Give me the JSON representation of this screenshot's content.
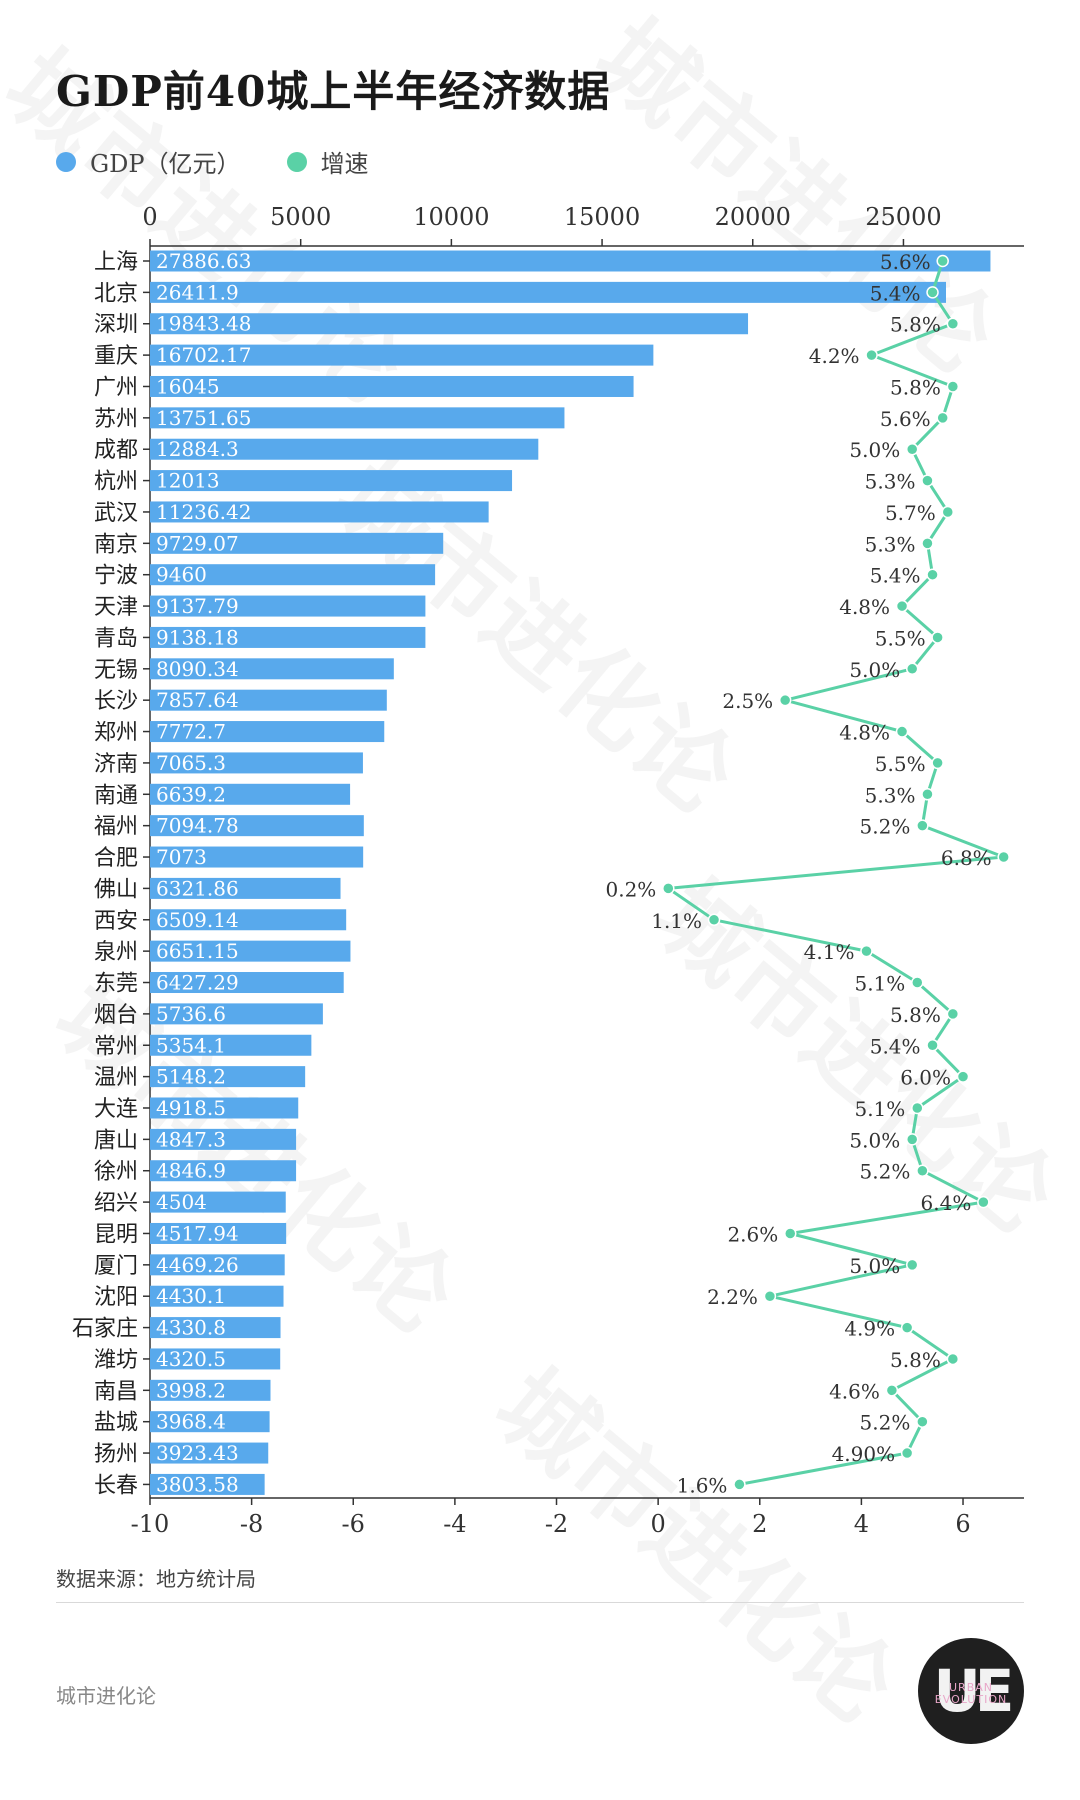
{
  "title": "GDP前40城上半年经济数据",
  "legend": [
    {
      "label": "GDP（亿元）",
      "color": "#58a9ec"
    },
    {
      "label": "增速",
      "color": "#5ad1a6"
    }
  ],
  "source": "数据来源：地方统计局",
  "brand": "城市进化论",
  "logo": {
    "mark": "UE",
    "sub_line1": "URBAN",
    "sub_line2": "EVOLUTION"
  },
  "chart_data": {
    "type": "bar+line",
    "title": "GDP前40城上半年经济数据",
    "categories": [
      "上海",
      "北京",
      "深圳",
      "重庆",
      "广州",
      "苏州",
      "成都",
      "杭州",
      "武汉",
      "南京",
      "宁波",
      "天津",
      "青岛",
      "无锡",
      "长沙",
      "郑州",
      "济南",
      "南通",
      "福州",
      "合肥",
      "佛山",
      "西安",
      "泉州",
      "东莞",
      "烟台",
      "常州",
      "温州",
      "大连",
      "唐山",
      "徐州",
      "绍兴",
      "昆明",
      "厦门",
      "沈阳",
      "石家庄",
      "潍坊",
      "南昌",
      "盐城",
      "扬州",
      "长春"
    ],
    "series": [
      {
        "name": "GDP（亿元）",
        "type": "bar",
        "axis": "top",
        "color": "#58a9ec",
        "values": [
          27886.63,
          26411.9,
          19843.48,
          16702.17,
          16045,
          13751.65,
          12884.3,
          12013,
          11236.42,
          9729.07,
          9460,
          9137.79,
          9138.18,
          8090.34,
          7857.64,
          7772.7,
          7065.3,
          6639.2,
          7094.78,
          7073,
          6321.86,
          6509.14,
          6651.15,
          6427.29,
          5736.6,
          5354.1,
          5148.2,
          4918.5,
          4847.3,
          4846.9,
          4504,
          4517.94,
          4469.26,
          4430.1,
          4330.8,
          4320.5,
          3998.2,
          3968.4,
          3923.43,
          3803.58
        ],
        "labels": [
          "27886.63",
          "26411.9",
          "19843.48",
          "16702.17",
          "16045",
          "13751.65",
          "12884.3",
          "12013",
          "11236.42",
          "9729.07",
          "9460",
          "9137.79",
          "9138.18",
          "8090.34",
          "7857.64",
          "7772.7",
          "7065.3",
          "6639.2",
          "7094.78",
          "7073",
          "6321.86",
          "6509.14",
          "6651.15",
          "6427.29",
          "5736.6",
          "5354.1",
          "5148.2",
          "4918.5",
          "4847.3",
          "4846.9",
          "4504",
          "4517.94",
          "4469.26",
          "4430.1",
          "4330.8",
          "4320.5",
          "3998.2",
          "3968.4",
          "3923.43",
          "3803.58"
        ]
      },
      {
        "name": "增速",
        "type": "line",
        "axis": "bottom",
        "color": "#5ad1a6",
        "values": [
          5.6,
          5.4,
          5.8,
          4.2,
          5.8,
          5.6,
          5.0,
          5.3,
          5.7,
          5.3,
          5.4,
          4.8,
          5.5,
          5.0,
          2.5,
          4.8,
          5.5,
          5.3,
          5.2,
          6.8,
          0.2,
          1.1,
          4.1,
          5.1,
          5.8,
          5.4,
          6.0,
          5.1,
          5.0,
          5.2,
          6.4,
          2.6,
          5.0,
          2.2,
          4.9,
          5.8,
          4.6,
          5.2,
          4.9,
          1.6
        ],
        "labels": [
          "5.6%",
          "5.4%",
          "5.8%",
          "4.2%",
          "5.8%",
          "5.6%",
          "5.0%",
          "5.3%",
          "5.7%",
          "5.3%",
          "5.4%",
          "4.8%",
          "5.5%",
          "5.0%",
          "2.5%",
          "4.8%",
          "5.5%",
          "5.3%",
          "5.2%",
          "6.8%",
          "0.2%",
          "1.1%",
          "4.1%",
          "5.1%",
          "5.8%",
          "5.4%",
          "6.0%",
          "5.1%",
          "5.0%",
          "5.2%",
          "6.4%",
          "2.6%",
          "5.0%",
          "2.2%",
          "4.9%",
          "5.8%",
          "4.6%",
          "5.2%",
          "4.90%",
          "1.6%"
        ]
      }
    ],
    "x_top": {
      "ticks": [
        0,
        5000,
        10000,
        15000,
        20000,
        25000
      ],
      "range": [
        0,
        29000
      ]
    },
    "x_bottom": {
      "ticks": [
        -10,
        -8,
        -6,
        -4,
        -2,
        0,
        2,
        4,
        6
      ],
      "range": [
        -10,
        7.2
      ]
    },
    "legend_position": "top-left",
    "grid": false
  },
  "watermarks": [
    "城市进化论",
    "URBAN EVOLUTION"
  ]
}
